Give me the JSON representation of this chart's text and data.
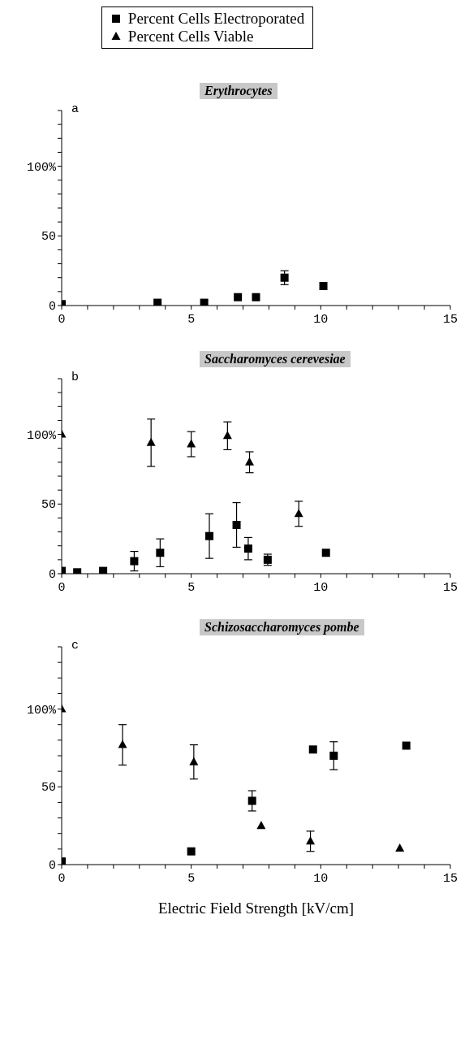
{
  "chart_data": [
    {
      "type": "scatter",
      "title": "Erythrocytes",
      "annotations": [
        "a"
      ],
      "legend": "top",
      "grid": false,
      "xlim": [
        0,
        15
      ],
      "xticks": [
        {
          "value": 0,
          "label": "0"
        },
        {
          "value": 1,
          "label": null
        },
        {
          "value": 2,
          "label": null
        },
        {
          "value": 3,
          "label": null
        },
        {
          "value": 4,
          "label": null
        },
        5,
        {
          "value": 6,
          "label": null
        },
        {
          "value": 7,
          "label": null
        },
        {
          "value": 8,
          "label": null
        },
        {
          "value": 9,
          "label": null
        },
        10,
        {
          "value": 11,
          "label": null
        },
        {
          "value": 12,
          "label": null
        },
        {
          "value": 13,
          "label": null
        },
        {
          "value": 14,
          "label": null
        },
        15
      ],
      "ylim": [
        0,
        140
      ],
      "yticks": [
        {
          "value": 0,
          "label": "0"
        },
        {
          "value": 10,
          "label": null
        },
        {
          "value": 20,
          "label": null
        },
        {
          "value": 30,
          "label": null
        },
        {
          "value": 40,
          "label": null
        },
        {
          "value": 50,
          "label": "50"
        },
        {
          "value": 60,
          "label": null
        },
        {
          "value": 70,
          "label": null
        },
        {
          "value": 80,
          "label": null
        },
        {
          "value": 90,
          "label": null
        },
        {
          "value": 100,
          "label": "100%"
        },
        {
          "value": 110,
          "label": null
        },
        {
          "value": 120,
          "label": null
        },
        {
          "value": 130,
          "label": null
        },
        {
          "value": 140,
          "label": null
        }
      ],
      "series": [
        {
          "name": "Percent Cells Electroporated",
          "color": "#000000",
          "marker": "square",
          "x": [
            0,
            3.7,
            5.5,
            6.8,
            7.5,
            8.6,
            10.1
          ],
          "values": [
            1,
            2,
            2,
            6,
            6,
            20,
            14
          ],
          "errors": [
            null,
            null,
            null,
            null,
            null,
            5,
            null
          ]
        },
        {
          "name": "Percent Cells Viable",
          "color": "#000000",
          "marker": "triangle"
        }
      ]
    },
    {
      "type": "scatter",
      "title": "Saccharomyces cerevesiae",
      "annotations": [
        "b"
      ],
      "grid": false,
      "xlim": [
        0,
        15
      ],
      "xticks": [
        {
          "value": 0,
          "label": "0"
        },
        {
          "value": 1,
          "label": null
        },
        {
          "value": 2,
          "label": null
        },
        {
          "value": 3,
          "label": null
        },
        {
          "value": 4,
          "label": null
        },
        5,
        {
          "value": 6,
          "label": null
        },
        {
          "value": 7,
          "label": null
        },
        {
          "value": 8,
          "label": null
        },
        {
          "value": 9,
          "label": null
        },
        10,
        {
          "value": 11,
          "label": null
        },
        {
          "value": 12,
          "label": null
        },
        {
          "value": 13,
          "label": null
        },
        {
          "value": 14,
          "label": null
        },
        15
      ],
      "ylim": [
        0,
        140
      ],
      "yticks": [
        {
          "value": 0,
          "label": "0"
        },
        {
          "value": 10,
          "label": null
        },
        {
          "value": 20,
          "label": null
        },
        {
          "value": 30,
          "label": null
        },
        {
          "value": 40,
          "label": null
        },
        {
          "value": 50,
          "label": "50"
        },
        {
          "value": 60,
          "label": null
        },
        {
          "value": 70,
          "label": null
        },
        {
          "value": 80,
          "label": null
        },
        {
          "value": 90,
          "label": null
        },
        {
          "value": 100,
          "label": "100%"
        },
        {
          "value": 110,
          "label": null
        },
        {
          "value": 120,
          "label": null
        },
        {
          "value": 130,
          "label": null
        },
        {
          "value": 140,
          "label": null
        }
      ],
      "series": [
        {
          "color": "#000000",
          "marker": "square",
          "x": [
            0,
            0.6,
            1.6,
            2.8,
            3.8,
            5.7,
            6.75,
            7.2,
            7.95,
            10.2
          ],
          "values": [
            2,
            1,
            2,
            9,
            15,
            27,
            35,
            18,
            10,
            15
          ],
          "errors": [
            null,
            null,
            null,
            7,
            10,
            16,
            16,
            8,
            4,
            null
          ]
        },
        {
          "color": "#000000",
          "marker": "triangle",
          "x": [
            0,
            3.45,
            5,
            6.4,
            7.25,
            9.15
          ],
          "values": [
            100,
            94,
            93,
            99,
            80,
            43
          ],
          "errors": [
            null,
            17,
            9,
            10,
            7.5,
            9
          ]
        }
      ]
    },
    {
      "type": "scatter",
      "title": "Schizosaccharomyces pombe",
      "annotations": [
        "c"
      ],
      "grid": false,
      "xlabel": "Electric Field Strength  [kV/cm]",
      "xlim": [
        0,
        15
      ],
      "xticks": [
        {
          "value": 0,
          "label": "0"
        },
        {
          "value": 1,
          "label": null
        },
        {
          "value": 2,
          "label": null
        },
        {
          "value": 3,
          "label": null
        },
        {
          "value": 4,
          "label": null
        },
        5,
        {
          "value": 6,
          "label": null
        },
        {
          "value": 7,
          "label": null
        },
        {
          "value": 8,
          "label": null
        },
        {
          "value": 9,
          "label": null
        },
        10,
        {
          "value": 11,
          "label": null
        },
        {
          "value": 12,
          "label": null
        },
        {
          "value": 13,
          "label": null
        },
        {
          "value": 14,
          "label": null
        },
        15
      ],
      "ylim": [
        0,
        140
      ],
      "yticks": [
        {
          "value": 0,
          "label": "0"
        },
        {
          "value": 10,
          "label": null
        },
        {
          "value": 20,
          "label": null
        },
        {
          "value": 30,
          "label": null
        },
        {
          "value": 40,
          "label": null
        },
        {
          "value": 50,
          "label": "50"
        },
        {
          "value": 60,
          "label": null
        },
        {
          "value": 70,
          "label": null
        },
        {
          "value": 80,
          "label": null
        },
        {
          "value": 90,
          "label": null
        },
        {
          "value": 100,
          "label": "100%"
        },
        {
          "value": 110,
          "label": null
        },
        {
          "value": 120,
          "label": null
        },
        {
          "value": 130,
          "label": null
        },
        {
          "value": 140,
          "label": null
        }
      ],
      "series": [
        {
          "color": "#000000",
          "marker": "square",
          "x": [
            0,
            5,
            7.35,
            9.7,
            10.5,
            13.3
          ],
          "values": [
            2,
            8.5,
            41,
            74,
            70,
            76.5
          ],
          "errors": [
            null,
            null,
            6.5,
            null,
            9,
            null
          ]
        },
        {
          "color": "#000000",
          "marker": "triangle",
          "x": [
            0,
            2.35,
            5.1,
            7.7,
            9.6,
            13.05
          ],
          "values": [
            100,
            77,
            66,
            25,
            15,
            10.5
          ],
          "errors": [
            null,
            13,
            11,
            null,
            6.5,
            null
          ]
        }
      ]
    }
  ]
}
